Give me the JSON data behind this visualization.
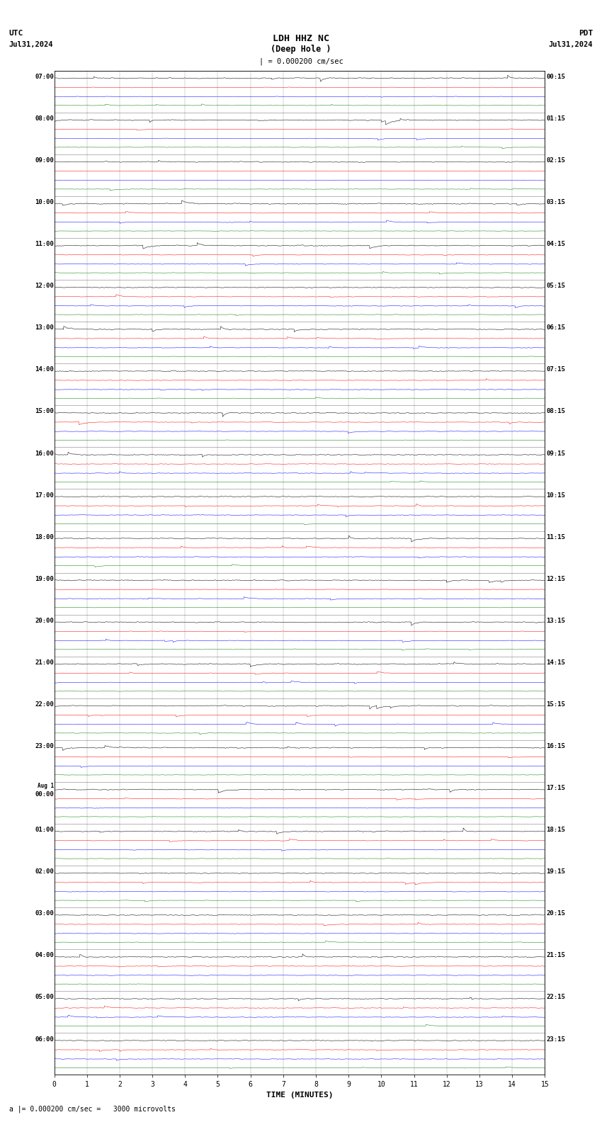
{
  "title_line1": "LDH HHZ NC",
  "title_line2": "(Deep Hole )",
  "scale_label": "| = 0.000200 cm/sec",
  "top_left_label1": "UTC",
  "top_left_label2": "Jul31,2024",
  "top_right_label1": "PDT",
  "top_right_label2": "Jul31,2024",
  "bottom_label": "TIME (MINUTES)",
  "footer_label": "a |= 0.000200 cm/sec =   3000 microvolts",
  "utc_times": [
    "07:00",
    "08:00",
    "09:00",
    "10:00",
    "11:00",
    "12:00",
    "13:00",
    "14:00",
    "15:00",
    "16:00",
    "17:00",
    "18:00",
    "19:00",
    "20:00",
    "21:00",
    "22:00",
    "23:00",
    "Aug 1\n00:00",
    "01:00",
    "02:00",
    "03:00",
    "04:00",
    "05:00",
    "06:00"
  ],
  "pdt_times": [
    "00:15",
    "01:15",
    "02:15",
    "03:15",
    "04:15",
    "05:15",
    "06:15",
    "07:15",
    "08:15",
    "09:15",
    "10:15",
    "11:15",
    "12:15",
    "13:15",
    "14:15",
    "15:15",
    "16:15",
    "17:15",
    "18:15",
    "19:15",
    "20:15",
    "21:15",
    "22:15",
    "23:15"
  ],
  "n_rows": 24,
  "n_traces_per_row": 4,
  "trace_colors": [
    "black",
    "red",
    "blue",
    "green"
  ],
  "bg_color": "white",
  "x_ticks": [
    0,
    1,
    2,
    3,
    4,
    5,
    6,
    7,
    8,
    9,
    10,
    11,
    12,
    13,
    14,
    15
  ],
  "x_min": 0,
  "x_max": 15,
  "noise_scale_black": 0.018,
  "noise_scale_red": 0.01,
  "noise_scale_blue": 0.01,
  "noise_scale_green": 0.007
}
